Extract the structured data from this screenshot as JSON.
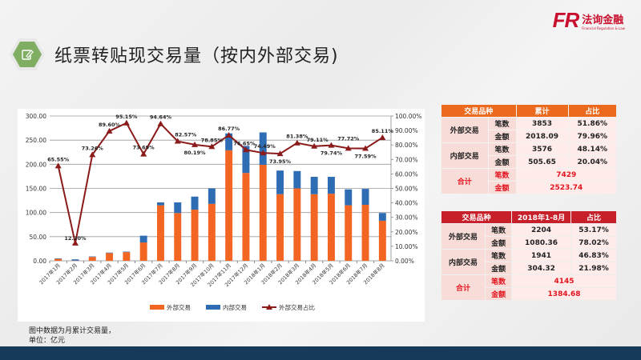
{
  "header": {
    "title": "纸票转贴现交易量（按内外部交易)",
    "icon": "edit-icon",
    "logo_mark": "FR",
    "logo_cn": "法询金融",
    "logo_en": "Financial Regulation & Law"
  },
  "footnote": {
    "line1": "图中数据为月累计交易量，",
    "line2": "单位：亿元"
  },
  "table_cumulative": {
    "headers": [
      "交易品种",
      "累计",
      "占比"
    ],
    "rows": [
      {
        "category": "外部交易",
        "sub": "笔数",
        "value": "3853",
        "pct": "51.86%"
      },
      {
        "category": "",
        "sub": "金额",
        "value": "2018.09",
        "pct": "79.96%"
      },
      {
        "category": "内部交易",
        "sub": "笔数",
        "value": "3576",
        "pct": "48.14%"
      },
      {
        "category": "",
        "sub": "金额",
        "value": "505.65",
        "pct": "20.04%"
      }
    ],
    "total": {
      "category": "合计",
      "count_label": "笔数",
      "count": "7429",
      "amount_label": "金额",
      "amount": "2523.74"
    }
  },
  "table_2018": {
    "headers": [
      "交易品种",
      "2018年1-8月",
      "占比"
    ],
    "rows": [
      {
        "category": "外部交易",
        "sub": "笔数",
        "value": "2204",
        "pct": "53.17%"
      },
      {
        "category": "",
        "sub": "金额",
        "value": "1080.36",
        "pct": "78.02%"
      },
      {
        "category": "内部交易",
        "sub": "笔数",
        "value": "1941",
        "pct": "46.83%"
      },
      {
        "category": "",
        "sub": "金额",
        "value": "304.32",
        "pct": "21.98%"
      }
    ],
    "total": {
      "category": "合计",
      "count_label": "笔数",
      "count": "4145",
      "amount_label": "金额",
      "amount": "1384.68"
    }
  },
  "colors": {
    "external": "#f26522",
    "internal": "#2e6db4",
    "ratio_line": "#8b1a1a",
    "table1_header": "#ec6a1e",
    "table2_header": "#c8202a",
    "bottom_bar": "#163a5a"
  },
  "chart_data": {
    "type": "bar",
    "stacked": true,
    "title": "",
    "xlabel": "",
    "ylabel": "",
    "ylim": [
      0,
      300
    ],
    "y2lim": [
      0,
      100
    ],
    "yticks": [
      "0.00",
      "50.00",
      "100.00",
      "150.00",
      "200.00",
      "250.00",
      "300.00"
    ],
    "y2ticks": [
      "0.00%",
      "10.00%",
      "20.00%",
      "30.00%",
      "40.00%",
      "50.00%",
      "60.00%",
      "70.00%",
      "80.00%",
      "90.00%",
      "100.00%"
    ],
    "grid": true,
    "legend_position": "bottom-right",
    "categories": [
      "2017年1月",
      "2017年2月",
      "2017年3月",
      "2017年4月",
      "2017年5月",
      "2017年6月",
      "2017年7月",
      "2017年8月",
      "2017年9月",
      "2017年10月",
      "2017年11月",
      "2017年12月",
      "2018年1月",
      "2018年2月",
      "2018年3月",
      "2018年4月",
      "2018年5月",
      "2018年6月",
      "2018年7月",
      "2018年8月"
    ],
    "series": [
      {
        "name": "外部交易",
        "type": "bar",
        "axis": "left",
        "values": [
          4,
          0.5,
          8,
          16,
          18,
          38,
          115,
          99,
          106,
          118,
          229,
          182,
          199,
          138,
          150,
          138,
          139,
          115,
          116,
          83
        ]
      },
      {
        "name": "内部交易",
        "type": "bar",
        "axis": "left",
        "values": [
          1,
          2.5,
          1,
          1,
          1,
          14,
          6,
          22,
          27,
          32,
          35,
          56,
          67,
          49,
          36,
          36,
          35,
          33,
          33,
          16
        ]
      },
      {
        "name": "外部交易占比",
        "type": "line",
        "axis": "right",
        "values": [
          65.55,
          12.2,
          73.26,
          89.6,
          95.15,
          73.69,
          94.64,
          82.57,
          80.19,
          78.85,
          86.77,
          76.65,
          74.49,
          73.95,
          81.38,
          79.11,
          79.74,
          77.72,
          77.59,
          85.11
        ]
      }
    ],
    "annotations": [
      "65.55%",
      "12.20%",
      "73.26%",
      "89.60%",
      "95.15%",
      "73.69%",
      "94.64%",
      "82.57%",
      "80.19%",
      "78.85%",
      "86.77%",
      "76.65%",
      "74.49%",
      "73.95%",
      "81.38%",
      "79.11%",
      "79.74%",
      "77.72%",
      "77.59%",
      "85.11%"
    ]
  }
}
